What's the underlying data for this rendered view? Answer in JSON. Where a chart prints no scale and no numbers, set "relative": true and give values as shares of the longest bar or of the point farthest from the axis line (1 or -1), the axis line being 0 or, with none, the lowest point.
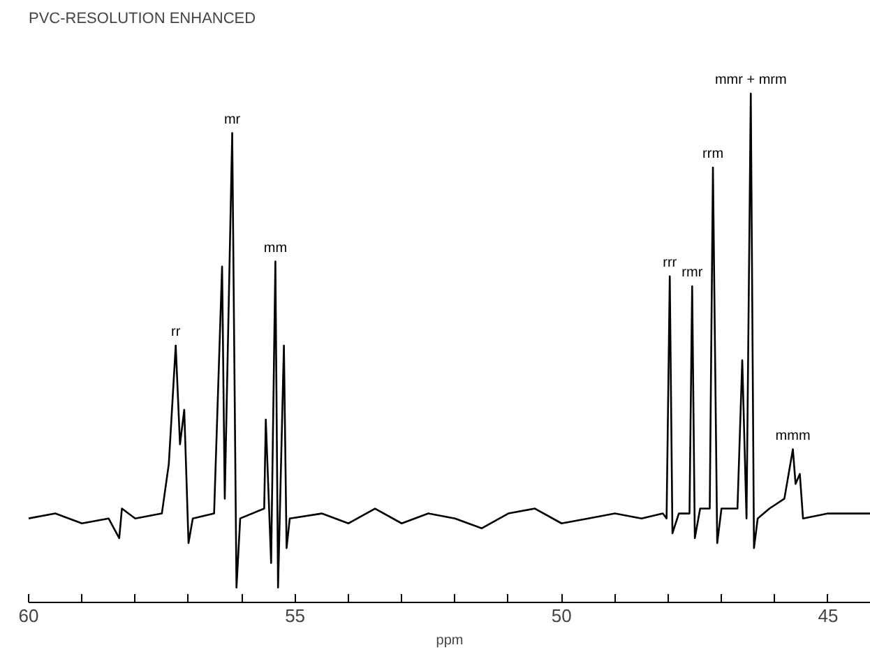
{
  "chart_data": {
    "type": "line",
    "relative": true,
    "title": "PVC-RESOLUTION ENHANCED",
    "xlabel": "ppm",
    "xlim": [
      60,
      44.2
    ],
    "xticks": [
      60,
      {
        "value": 59,
        "label": null
      },
      {
        "value": 58,
        "label": null
      },
      {
        "value": 57,
        "label": null
      },
      {
        "value": 56,
        "label": null
      },
      55,
      {
        "value": 54,
        "label": null
      },
      {
        "value": 53,
        "label": null
      },
      {
        "value": 52,
        "label": null
      },
      {
        "value": 51,
        "label": null
      },
      50,
      {
        "value": 49,
        "label": null
      },
      {
        "value": 48,
        "label": null
      },
      {
        "value": 47,
        "label": null
      },
      {
        "value": 46,
        "label": null
      },
      45
    ],
    "grid": false,
    "marker": "none",
    "line_style": "solid",
    "series": [
      {
        "color": "#000000",
        "x": [
          60.0,
          59.5,
          59.0,
          58.5,
          58.3,
          58.25,
          58.0,
          57.5,
          57.37,
          57.24,
          57.16,
          57.08,
          57.0,
          56.92,
          56.52,
          56.37,
          56.32,
          56.18,
          56.1,
          56.03,
          55.58,
          55.55,
          55.45,
          55.37,
          55.32,
          55.21,
          55.16,
          55.1,
          54.5,
          54.0,
          53.5,
          53.0,
          52.5,
          52.0,
          51.5,
          51.0,
          50.5,
          50.0,
          49.5,
          49.0,
          48.5,
          48.1,
          48.03,
          47.97,
          47.92,
          47.8,
          47.6,
          47.55,
          47.5,
          47.4,
          47.22,
          47.16,
          47.08,
          47.0,
          46.7,
          46.61,
          46.53,
          46.45,
          46.39,
          46.32,
          46.1,
          45.82,
          45.66,
          45.61,
          45.53,
          45.47,
          45.0,
          44.5,
          44.2
        ],
        "values": [
          0.14,
          0.15,
          0.13,
          0.14,
          0.1,
          0.16,
          0.14,
          0.15,
          0.25,
          0.49,
          0.29,
          0.36,
          0.09,
          0.14,
          0.15,
          0.65,
          0.18,
          0.92,
          0,
          0.14,
          0.16,
          0.34,
          0.05,
          0.66,
          0,
          0.49,
          0.08,
          0.14,
          0.15,
          0.13,
          0.16,
          0.13,
          0.15,
          0.14,
          0.12,
          0.15,
          0.16,
          0.13,
          0.14,
          0.15,
          0.14,
          0.15,
          0.14,
          0.63,
          0.11,
          0.15,
          0.15,
          0.61,
          0.1,
          0.16,
          0.16,
          0.85,
          0.09,
          0.16,
          0.16,
          0.46,
          0.14,
          1.0,
          0.08,
          0.14,
          0.16,
          0.18,
          0.28,
          0.21,
          0.23,
          0.14,
          0.15,
          0.15,
          0.15
        ]
      }
    ],
    "annotations": [
      {
        "text": "rr",
        "x": 57.24,
        "y": 0.49
      },
      {
        "text": "mr",
        "x": 56.18,
        "y": 0.92
      },
      {
        "text": "mm",
        "x": 55.37,
        "y": 0.66
      },
      {
        "text": "rrr",
        "x": 47.97,
        "y": 0.63
      },
      {
        "text": "rmr",
        "x": 47.55,
        "y": 0.61
      },
      {
        "text": "rrm",
        "x": 47.16,
        "y": 0.85
      },
      {
        "text": "mmr + mrm",
        "x": 46.45,
        "y": 1.0
      },
      {
        "text": "mmm",
        "x": 45.66,
        "y": 0.28
      }
    ]
  }
}
